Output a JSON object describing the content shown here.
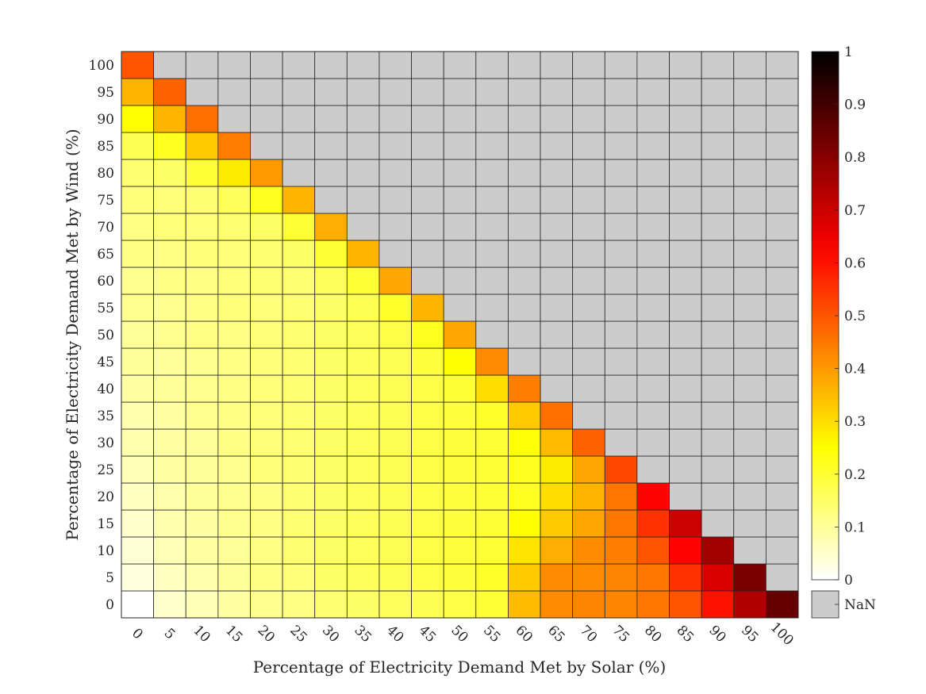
{
  "chart_data": {
    "type": "heatmap",
    "title": "",
    "xlabel": "Percentage of Electricity Demand Met by Solar (%)",
    "ylabel": "Percentage of Electricity Demand Met by Wind (%)",
    "x_categories": [
      "0",
      "5",
      "10",
      "15",
      "20",
      "25",
      "30",
      "35",
      "40",
      "45",
      "50",
      "55",
      "60",
      "65",
      "70",
      "75",
      "80",
      "85",
      "90",
      "95",
      "100"
    ],
    "y_categories": [
      "0",
      "5",
      "10",
      "15",
      "20",
      "25",
      "30",
      "35",
      "40",
      "45",
      "50",
      "55",
      "60",
      "65",
      "70",
      "75",
      "80",
      "85",
      "90",
      "95",
      "100"
    ],
    "values_note_order": "rows from wind 0 (first row) to wind 100 (last row); columns solar 0..100; null = NaN",
    "values": [
      [
        0.0,
        0.05,
        0.07,
        0.09,
        0.11,
        0.12,
        0.14,
        0.15,
        0.16,
        0.17,
        0.18,
        0.2,
        0.35,
        0.42,
        0.43,
        0.43,
        0.45,
        0.5,
        0.6,
        0.74,
        0.85
      ],
      [
        0.03,
        0.06,
        0.08,
        0.1,
        0.12,
        0.13,
        0.15,
        0.16,
        0.17,
        0.18,
        0.19,
        0.21,
        0.33,
        0.42,
        0.42,
        0.43,
        0.45,
        0.55,
        0.68,
        0.82,
        null
      ],
      [
        0.04,
        0.07,
        0.09,
        0.1,
        0.12,
        0.14,
        0.15,
        0.16,
        0.17,
        0.18,
        0.19,
        0.2,
        0.29,
        0.37,
        0.42,
        0.44,
        0.5,
        0.62,
        0.76,
        null,
        null
      ],
      [
        0.05,
        0.08,
        0.09,
        0.11,
        0.12,
        0.14,
        0.15,
        0.16,
        0.17,
        0.18,
        0.19,
        0.2,
        0.25,
        0.33,
        0.38,
        0.45,
        0.55,
        0.7,
        null,
        null,
        null
      ],
      [
        0.06,
        0.08,
        0.1,
        0.11,
        0.12,
        0.14,
        0.15,
        0.16,
        0.17,
        0.18,
        0.19,
        0.2,
        0.22,
        0.3,
        0.36,
        0.45,
        0.62,
        null,
        null,
        null,
        null
      ],
      [
        0.07,
        0.09,
        0.1,
        0.11,
        0.13,
        0.14,
        0.15,
        0.16,
        0.17,
        0.18,
        0.19,
        0.2,
        0.22,
        0.28,
        0.38,
        0.52,
        null,
        null,
        null,
        null,
        null
      ],
      [
        0.08,
        0.09,
        0.1,
        0.12,
        0.13,
        0.14,
        0.15,
        0.16,
        0.17,
        0.18,
        0.19,
        0.2,
        0.24,
        0.35,
        0.48,
        null,
        null,
        null,
        null,
        null,
        null
      ],
      [
        0.08,
        0.09,
        0.11,
        0.12,
        0.13,
        0.14,
        0.15,
        0.16,
        0.17,
        0.18,
        0.19,
        0.21,
        0.33,
        0.46,
        null,
        null,
        null,
        null,
        null,
        null,
        null
      ],
      [
        0.09,
        0.1,
        0.11,
        0.12,
        0.13,
        0.14,
        0.15,
        0.16,
        0.17,
        0.18,
        0.2,
        0.3,
        0.44,
        null,
        null,
        null,
        null,
        null,
        null,
        null,
        null
      ],
      [
        0.1,
        0.1,
        0.11,
        0.12,
        0.13,
        0.14,
        0.15,
        0.16,
        0.17,
        0.19,
        0.25,
        0.42,
        null,
        null,
        null,
        null,
        null,
        null,
        null,
        null,
        null
      ],
      [
        0.1,
        0.11,
        0.12,
        0.12,
        0.13,
        0.14,
        0.15,
        0.16,
        0.18,
        0.22,
        0.38,
        null,
        null,
        null,
        null,
        null,
        null,
        null,
        null,
        null,
        null
      ],
      [
        0.11,
        0.11,
        0.12,
        0.13,
        0.13,
        0.14,
        0.15,
        0.17,
        0.21,
        0.36,
        null,
        null,
        null,
        null,
        null,
        null,
        null,
        null,
        null,
        null,
        null
      ],
      [
        0.11,
        0.12,
        0.12,
        0.13,
        0.14,
        0.14,
        0.16,
        0.2,
        0.38,
        null,
        null,
        null,
        null,
        null,
        null,
        null,
        null,
        null,
        null,
        null,
        null
      ],
      [
        0.12,
        0.12,
        0.13,
        0.13,
        0.14,
        0.15,
        0.2,
        0.36,
        null,
        null,
        null,
        null,
        null,
        null,
        null,
        null,
        null,
        null,
        null,
        null,
        null
      ],
      [
        0.12,
        0.13,
        0.13,
        0.14,
        0.15,
        0.2,
        0.37,
        null,
        null,
        null,
        null,
        null,
        null,
        null,
        null,
        null,
        null,
        null,
        null,
        null,
        null
      ],
      [
        0.13,
        0.13,
        0.14,
        0.16,
        0.22,
        0.36,
        null,
        null,
        null,
        null,
        null,
        null,
        null,
        null,
        null,
        null,
        null,
        null,
        null,
        null,
        null
      ],
      [
        0.14,
        0.15,
        0.2,
        0.28,
        0.4,
        null,
        null,
        null,
        null,
        null,
        null,
        null,
        null,
        null,
        null,
        null,
        null,
        null,
        null,
        null,
        null
      ],
      [
        0.17,
        0.22,
        0.33,
        0.44,
        null,
        null,
        null,
        null,
        null,
        null,
        null,
        null,
        null,
        null,
        null,
        null,
        null,
        null,
        null,
        null,
        null
      ],
      [
        0.25,
        0.36,
        0.46,
        null,
        null,
        null,
        null,
        null,
        null,
        null,
        null,
        null,
        null,
        null,
        null,
        null,
        null,
        null,
        null,
        null,
        null
      ],
      [
        0.36,
        0.48,
        null,
        null,
        null,
        null,
        null,
        null,
        null,
        null,
        null,
        null,
        null,
        null,
        null,
        null,
        null,
        null,
        null,
        null,
        null
      ],
      [
        0.5,
        null,
        null,
        null,
        null,
        null,
        null,
        null,
        null,
        null,
        null,
        null,
        null,
        null,
        null,
        null,
        null,
        null,
        null,
        null,
        null
      ]
    ],
    "colorbar": {
      "range": [
        0,
        1
      ],
      "ticks": [
        "0",
        "0.1",
        "0.2",
        "0.3",
        "0.4",
        "0.5",
        "0.6",
        "0.7",
        "0.8",
        "0.9",
        "1"
      ],
      "colormap": "hot (reversed)",
      "nan_label": "NaN",
      "nan_color": "#cccccc"
    },
    "grid": true,
    "legend": "colorbar right"
  }
}
